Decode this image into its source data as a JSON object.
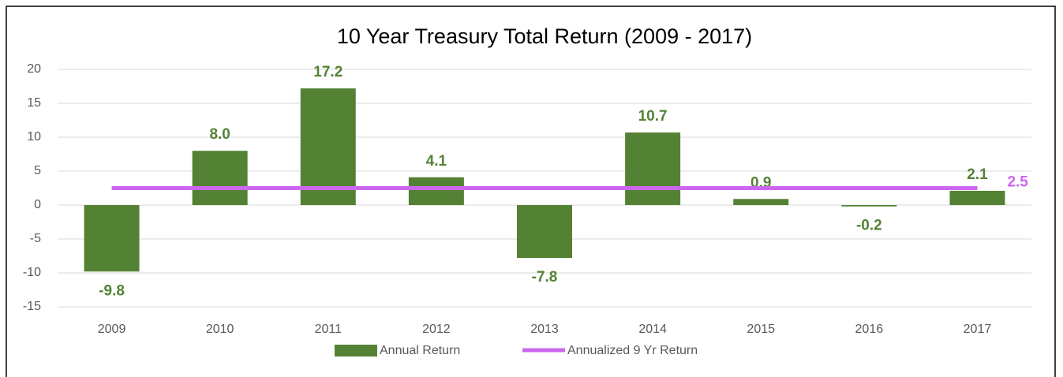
{
  "chart_data": {
    "type": "bar",
    "title": "10 Year Treasury Total Return (2009 - 2017)",
    "categories": [
      "2009",
      "2010",
      "2011",
      "2012",
      "2013",
      "2014",
      "2015",
      "2016",
      "2017"
    ],
    "series": [
      {
        "name": "Annual Return",
        "type": "bar",
        "color": "#548235",
        "values": [
          -9.8,
          8.0,
          17.2,
          4.1,
          -7.8,
          10.7,
          0.9,
          -0.2,
          2.1
        ],
        "value_labels": [
          "-9.8",
          "8.0",
          "17.2",
          "4.1",
          "-7.8",
          "10.7",
          "0.9",
          "-0.2",
          "2.1"
        ]
      },
      {
        "name": "Annualized 9 Yr Return",
        "type": "line",
        "color": "#cc66ee",
        "values": [
          2.5,
          2.5,
          2.5,
          2.5,
          2.5,
          2.5,
          2.5,
          2.5,
          2.5
        ]
      }
    ],
    "ylim": [
      -15,
      20
    ],
    "yticks": [
      -15,
      -10,
      -5,
      0,
      5,
      10,
      15,
      20
    ],
    "grid": true,
    "legend": "bottom"
  }
}
